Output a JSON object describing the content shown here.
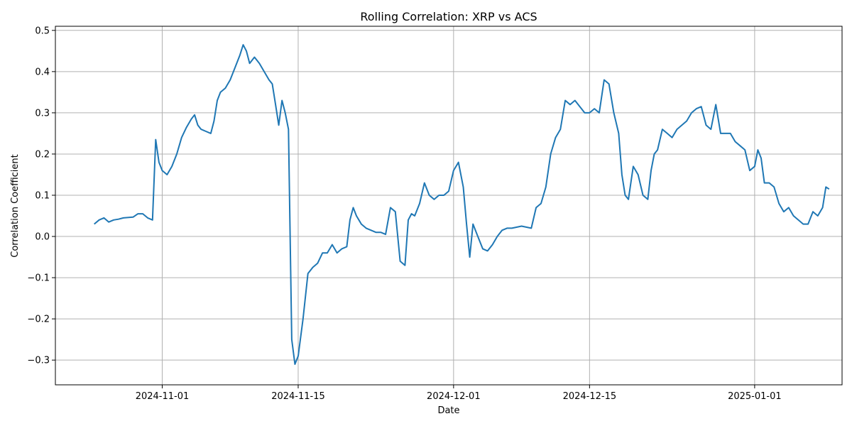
{
  "chart_data": {
    "type": "line",
    "title": "Rolling Correlation: XRP vs ACS",
    "xlabel": "Date",
    "ylabel": "Correlation Coefficient",
    "xlim": [
      "2024-10-21",
      "2025-01-10"
    ],
    "ylim": [
      -0.36,
      0.51
    ],
    "grid": true,
    "x_ticks": [
      "2024-11-01",
      "2024-11-15",
      "2024-12-01",
      "2024-12-15",
      "2025-01-01"
    ],
    "y_ticks": [
      -0.3,
      -0.2,
      -0.1,
      0.0,
      0.1,
      0.2,
      0.3,
      0.4,
      0.5
    ],
    "y_tick_labels": [
      "−0.3",
      "−0.2",
      "−0.1",
      "0.0",
      "0.1",
      "0.2",
      "0.3",
      "0.4",
      "0.5"
    ],
    "series": [
      {
        "color": "#1f77b4",
        "points": [
          [
            "2024-10-25",
            0.03
          ],
          [
            "2024-10-25",
            0.04
          ],
          [
            "2024-10-26",
            0.045
          ],
          [
            "2024-10-26",
            0.035
          ],
          [
            "2024-10-27",
            0.04
          ],
          [
            "2024-10-27",
            0.042
          ],
          [
            "2024-10-28",
            0.045
          ],
          [
            "2024-10-29",
            0.047
          ],
          [
            "2024-10-29",
            0.055
          ],
          [
            "2024-10-30",
            0.055
          ],
          [
            "2024-10-30",
            0.045
          ],
          [
            "2024-10-31",
            0.04
          ],
          [
            "2024-10-31",
            0.235
          ],
          [
            "2024-10-31",
            0.18
          ],
          [
            "2024-11-01",
            0.16
          ],
          [
            "2024-11-01",
            0.15
          ],
          [
            "2024-11-02",
            0.17
          ],
          [
            "2024-11-02",
            0.2
          ],
          [
            "2024-11-03",
            0.24
          ],
          [
            "2024-11-03",
            0.265
          ],
          [
            "2024-11-04",
            0.285
          ],
          [
            "2024-11-04",
            0.295
          ],
          [
            "2024-11-04",
            0.27
          ],
          [
            "2024-11-05",
            0.26
          ],
          [
            "2024-11-05",
            0.255
          ],
          [
            "2024-11-06",
            0.25
          ],
          [
            "2024-11-06",
            0.28
          ],
          [
            "2024-11-06",
            0.33
          ],
          [
            "2024-11-07",
            0.35
          ],
          [
            "2024-11-07",
            0.36
          ],
          [
            "2024-11-08",
            0.38
          ],
          [
            "2024-11-08",
            0.41
          ],
          [
            "2024-11-09",
            0.44
          ],
          [
            "2024-11-09",
            0.465
          ],
          [
            "2024-11-09",
            0.45
          ],
          [
            "2024-11-10",
            0.42
          ],
          [
            "2024-11-10",
            0.435
          ],
          [
            "2024-11-11",
            0.42
          ],
          [
            "2024-11-11",
            0.4
          ],
          [
            "2024-11-12",
            0.38
          ],
          [
            "2024-11-12",
            0.37
          ],
          [
            "2024-11-12",
            0.32
          ],
          [
            "2024-11-13",
            0.27
          ],
          [
            "2024-11-13",
            0.33
          ],
          [
            "2024-11-13",
            0.3
          ],
          [
            "2024-11-14",
            0.26
          ],
          [
            "2024-11-14",
            -0.25
          ],
          [
            "2024-11-14",
            -0.31
          ],
          [
            "2024-11-15",
            -0.29
          ],
          [
            "2024-11-15",
            -0.2
          ],
          [
            "2024-11-16",
            -0.09
          ],
          [
            "2024-11-16",
            -0.075
          ],
          [
            "2024-11-17",
            -0.065
          ],
          [
            "2024-11-17",
            -0.04
          ],
          [
            "2024-11-18",
            -0.04
          ],
          [
            "2024-11-18",
            -0.02
          ],
          [
            "2024-11-19",
            -0.04
          ],
          [
            "2024-11-19",
            -0.03
          ],
          [
            "2024-11-20",
            -0.025
          ],
          [
            "2024-11-20",
            0.04
          ],
          [
            "2024-11-20",
            0.07
          ],
          [
            "2024-11-21",
            0.05
          ],
          [
            "2024-11-21",
            0.03
          ],
          [
            "2024-11-22",
            0.02
          ],
          [
            "2024-11-22",
            0.015
          ],
          [
            "2024-11-23",
            0.01
          ],
          [
            "2024-11-23",
            0.01
          ],
          [
            "2024-11-24",
            0.005
          ],
          [
            "2024-11-24",
            0.07
          ],
          [
            "2024-11-25",
            0.06
          ],
          [
            "2024-11-25",
            -0.06
          ],
          [
            "2024-11-26",
            -0.07
          ],
          [
            "2024-11-26",
            0.04
          ],
          [
            "2024-11-26",
            0.055
          ],
          [
            "2024-11-27",
            0.05
          ],
          [
            "2024-11-27",
            0.08
          ],
          [
            "2024-11-28",
            0.13
          ],
          [
            "2024-11-28",
            0.1
          ],
          [
            "2024-11-29",
            0.09
          ],
          [
            "2024-11-29",
            0.1
          ],
          [
            "2024-11-30",
            0.1
          ],
          [
            "2024-11-30",
            0.11
          ],
          [
            "2024-12-01",
            0.16
          ],
          [
            "2024-12-01",
            0.18
          ],
          [
            "2024-12-02",
            0.12
          ],
          [
            "2024-12-02",
            0.03
          ],
          [
            "2024-12-02",
            -0.05
          ],
          [
            "2024-12-03",
            0.03
          ],
          [
            "2024-12-03",
            0.0
          ],
          [
            "2024-12-04",
            -0.03
          ],
          [
            "2024-12-04",
            -0.035
          ],
          [
            "2024-12-05",
            -0.02
          ],
          [
            "2024-12-05",
            0.0
          ],
          [
            "2024-12-06",
            0.015
          ],
          [
            "2024-12-06",
            0.02
          ],
          [
            "2024-12-07",
            0.02
          ],
          [
            "2024-12-08",
            0.025
          ],
          [
            "2024-12-09",
            0.02
          ],
          [
            "2024-12-09",
            0.07
          ],
          [
            "2024-12-10",
            0.08
          ],
          [
            "2024-12-10",
            0.12
          ],
          [
            "2024-12-11",
            0.2
          ],
          [
            "2024-12-11",
            0.24
          ],
          [
            "2024-12-12",
            0.26
          ],
          [
            "2024-12-12",
            0.33
          ],
          [
            "2024-12-13",
            0.32
          ],
          [
            "2024-12-13",
            0.33
          ],
          [
            "2024-12-14",
            0.315
          ],
          [
            "2024-12-14",
            0.3
          ],
          [
            "2024-12-15",
            0.3
          ],
          [
            "2024-12-15",
            0.31
          ],
          [
            "2024-12-16",
            0.3
          ],
          [
            "2024-12-16",
            0.38
          ],
          [
            "2024-12-17",
            0.37
          ],
          [
            "2024-12-17",
            0.3
          ],
          [
            "2024-12-18",
            0.25
          ],
          [
            "2024-12-18",
            0.15
          ],
          [
            "2024-12-18",
            0.1
          ],
          [
            "2024-12-19",
            0.09
          ],
          [
            "2024-12-19",
            0.17
          ],
          [
            "2024-12-20",
            0.15
          ],
          [
            "2024-12-20",
            0.1
          ],
          [
            "2024-12-21",
            0.09
          ],
          [
            "2024-12-21",
            0.16
          ],
          [
            "2024-12-21",
            0.2
          ],
          [
            "2024-12-22",
            0.21
          ],
          [
            "2024-12-22",
            0.26
          ],
          [
            "2024-12-23",
            0.25
          ],
          [
            "2024-12-23",
            0.24
          ],
          [
            "2024-12-24",
            0.26
          ],
          [
            "2024-12-25",
            0.28
          ],
          [
            "2024-12-25",
            0.3
          ],
          [
            "2024-12-26",
            0.31
          ],
          [
            "2024-12-26",
            0.315
          ],
          [
            "2024-12-27",
            0.27
          ],
          [
            "2024-12-27",
            0.26
          ],
          [
            "2024-12-28",
            0.32
          ],
          [
            "2024-12-28",
            0.25
          ],
          [
            "2024-12-29",
            0.25
          ],
          [
            "2024-12-29",
            0.25
          ],
          [
            "2024-12-30",
            0.23
          ],
          [
            "2024-12-30",
            0.22
          ],
          [
            "2024-12-31",
            0.21
          ],
          [
            "2024-12-31",
            0.16
          ],
          [
            "2025-01-01",
            0.17
          ],
          [
            "2025-01-01",
            0.21
          ],
          [
            "2025-01-01",
            0.19
          ],
          [
            "2025-01-02",
            0.13
          ],
          [
            "2025-01-02",
            0.13
          ],
          [
            "2025-01-03",
            0.12
          ],
          [
            "2025-01-03",
            0.08
          ],
          [
            "2025-01-04",
            0.06
          ],
          [
            "2025-01-04",
            0.07
          ],
          [
            "2025-01-05",
            0.05
          ],
          [
            "2025-01-05",
            0.04
          ],
          [
            "2025-01-06",
            0.03
          ],
          [
            "2025-01-06",
            0.03
          ],
          [
            "2025-01-07",
            0.06
          ],
          [
            "2025-01-07",
            0.05
          ],
          [
            "2025-01-08",
            0.07
          ],
          [
            "2025-01-08",
            0.12
          ],
          [
            "2025-01-08",
            0.115
          ]
        ]
      }
    ]
  }
}
